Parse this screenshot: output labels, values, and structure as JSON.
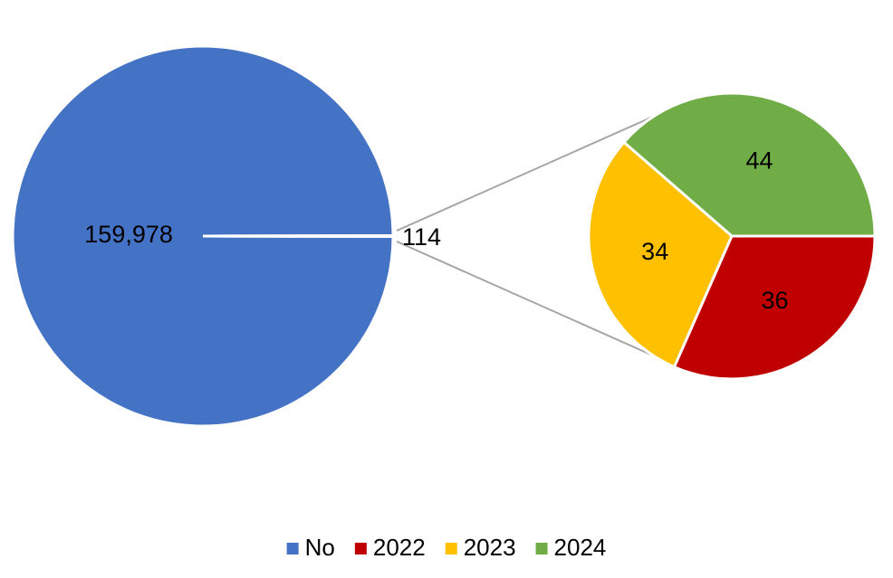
{
  "chart_data": {
    "type": "pie-of-pie",
    "categories": [
      "No",
      "2022",
      "2023",
      "2024"
    ],
    "values": [
      159978,
      36,
      34,
      44
    ],
    "value_labels": [
      "159,978",
      "36",
      "34",
      "44"
    ],
    "colors": [
      "#4472c4",
      "#c00000",
      "#ffc000",
      "#70ad47"
    ],
    "other": 114,
    "legend": "bottom"
  }
}
